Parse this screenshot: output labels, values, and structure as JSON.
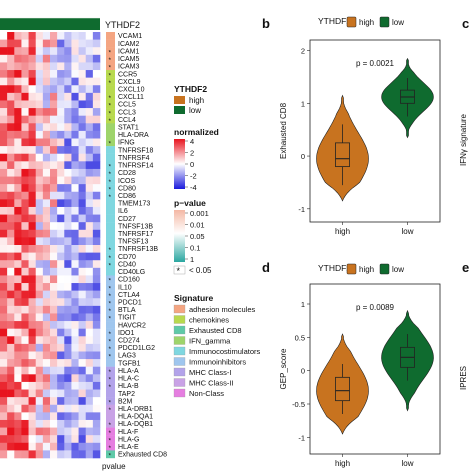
{
  "heatmap": {
    "top_label": "YTHDF2",
    "bottom_label": "pvalue",
    "genes": [
      "VCAM1",
      "ICAM2",
      "ICAM1",
      "ICAM5",
      "ICAM3",
      "CCR5",
      "CXCL9",
      "CXCL10",
      "CXCL11",
      "CCL5",
      "CCL3",
      "CCL4",
      "STAT1",
      "HLA-DRA",
      "IFNG",
      "TNFRSF18",
      "TNFRSF4",
      "TNFRSF14",
      "CD28",
      "ICOS",
      "CD80",
      "CD86",
      "TMEM173",
      "IL6",
      "CD27",
      "TNFSF13B",
      "TNFRSF17",
      "TNFSF13",
      "TNFRSF13B",
      "CD70",
      "CD40",
      "CD40LG",
      "CD160",
      "IL10",
      "CTLA4",
      "PDCD1",
      "BTLA",
      "TIGIT",
      "HAVCR2",
      "IDO1",
      "CD274",
      "PDCD1LG2",
      "LAG3",
      "TGFB1",
      "HLA-A",
      "HLA-C",
      "HLA-B",
      "TAP2",
      "B2M",
      "HLA-DRB1",
      "HLA-DQA1",
      "HLA-DQB1",
      "HLA-F",
      "HLA-G",
      "HLA-E",
      "Exhausted CD8"
    ],
    "significant": [
      false,
      false,
      true,
      true,
      true,
      true,
      true,
      false,
      true,
      true,
      true,
      true,
      false,
      false,
      true,
      false,
      false,
      true,
      true,
      true,
      true,
      true,
      false,
      false,
      false,
      false,
      false,
      false,
      true,
      true,
      true,
      false,
      true,
      true,
      true,
      true,
      true,
      true,
      false,
      true,
      true,
      true,
      true,
      false,
      true,
      true,
      true,
      false,
      true,
      true,
      false,
      true,
      true,
      true,
      true,
      true
    ],
    "signature": [
      "adhesion molecules",
      "adhesion molecules",
      "adhesion molecules",
      "adhesion molecules",
      "adhesion molecules",
      "chemokines",
      "chemokines",
      "chemokines",
      "chemokines",
      "chemokines",
      "chemokines",
      "chemokines",
      "IFN_gamma",
      "IFN_gamma",
      "IFN_gamma",
      "Immunocostimulators",
      "Immunocostimulators",
      "Immunocostimulators",
      "Immunocostimulators",
      "Immunocostimulators",
      "Immunocostimulators",
      "Immunocostimulators",
      "Immunocostimulators",
      "Immunocostimulators",
      "Immunocostimulators",
      "Immunocostimulators",
      "Immunocostimulators",
      "Immunocostimulators",
      "Immunocostimulators",
      "Immunocostimulators",
      "Immunocostimulators",
      "Immunocostimulators",
      "Immunoinhibitors",
      "Immunoinhibitors",
      "Immunoinhibitors",
      "Immunoinhibitors",
      "Immunoinhibitors",
      "Immunoinhibitors",
      "Immunoinhibitors",
      "Immunoinhibitors",
      "Immunoinhibitors",
      "Immunoinhibitors",
      "Immunoinhibitors",
      "Immunoinhibitors",
      "MHC Class-I",
      "MHC Class-I",
      "MHC Class-I",
      "MHC Class-I",
      "MHC Class-I",
      "MHC Class-II",
      "MHC Class-II",
      "MHC Class-II",
      "Non-Class",
      "Non-Class",
      "Non-Class",
      "Exhausted CD8"
    ]
  },
  "legend": {
    "ythdf2": {
      "title": "YTHDF2",
      "items": [
        {
          "label": "high",
          "color": "#c8731f"
        },
        {
          "label": "low",
          "color": "#0f6b2f"
        }
      ]
    },
    "normalized": {
      "title": "normalized",
      "ticks": [
        "4",
        "2",
        "0",
        "-2",
        "-4"
      ],
      "colors": [
        "#e8141e",
        "#ffffff",
        "#1a1adc"
      ]
    },
    "pvalue": {
      "title": "p−value",
      "ticks": [
        "0.001",
        "0.01",
        "0.05",
        "0.1",
        "1"
      ],
      "star_label": "< 0.05",
      "star": "*"
    },
    "signature": {
      "title": "Signature",
      "items": [
        {
          "label": "adhesion molecules",
          "color": "#f4a582"
        },
        {
          "label": "chemokines",
          "color": "#b8d94e"
        },
        {
          "label": "Exhausted CD8",
          "color": "#5fc9a8"
        },
        {
          "label": "IFN_gamma",
          "color": "#9ed46b"
        },
        {
          "label": "Immunocostimulators",
          "color": "#7fd7e0"
        },
        {
          "label": "Immunoinhibitors",
          "color": "#9fc6ee"
        },
        {
          "label": "MHC Class-I",
          "color": "#b3a3ea"
        },
        {
          "label": "MHC Class-II",
          "color": "#c9a2e6"
        },
        {
          "label": "Non-Class",
          "color": "#e57ee0"
        }
      ]
    }
  },
  "panels": {
    "b": {
      "letter": "b",
      "legend_title": "YTHDF2",
      "legend_items": [
        "high",
        "low"
      ]
    },
    "c": {
      "letter": "c",
      "ylabel": "IFNγ signature"
    },
    "d": {
      "letter": "d",
      "legend_title": "YTHDF2",
      "legend_items": [
        "high",
        "low"
      ]
    },
    "e": {
      "letter": "e",
      "ylabel": "IPRES"
    }
  },
  "chart_data": [
    {
      "type": "violin",
      "panel": "b",
      "title": "",
      "xlabel": "",
      "ylabel": "Exhausted CD8",
      "annotation": "p = 0.0021",
      "categories": [
        "high",
        "low"
      ],
      "colors": [
        "#c8731f",
        "#0f6b2f"
      ],
      "ylim": [
        -1.25,
        2.2
      ],
      "yticks": [
        -1,
        0,
        1,
        2
      ],
      "box": [
        {
          "name": "high",
          "q1": -0.2,
          "median": -0.05,
          "q3": 0.25,
          "whisker_low": -0.55,
          "whisker_high": 0.6,
          "min": -0.85,
          "max": 1.15
        },
        {
          "name": "low",
          "q1": 1.0,
          "median": 1.12,
          "q3": 1.25,
          "whisker_low": 0.75,
          "whisker_high": 1.48,
          "min": 0.35,
          "max": 1.85
        }
      ]
    },
    {
      "type": "violin",
      "panel": "d",
      "title": "",
      "xlabel": "",
      "ylabel": "GEP_score",
      "annotation": "p = 0.0089",
      "categories": [
        "high",
        "low"
      ],
      "colors": [
        "#c8731f",
        "#0f6b2f"
      ],
      "ylim": [
        -1.25,
        1.3
      ],
      "yticks": [
        -1.0,
        -0.5,
        0.0,
        0.5,
        1.0
      ],
      "box": [
        {
          "name": "high",
          "q1": -0.45,
          "median": -0.3,
          "q3": -0.1,
          "whisker_low": -0.65,
          "whisker_high": 0.1,
          "min": -0.95,
          "max": 0.55
        },
        {
          "name": "low",
          "q1": 0.05,
          "median": 0.2,
          "q3": 0.35,
          "whisker_low": -0.15,
          "whisker_high": 0.55,
          "min": -0.6,
          "max": 0.9
        }
      ]
    }
  ]
}
